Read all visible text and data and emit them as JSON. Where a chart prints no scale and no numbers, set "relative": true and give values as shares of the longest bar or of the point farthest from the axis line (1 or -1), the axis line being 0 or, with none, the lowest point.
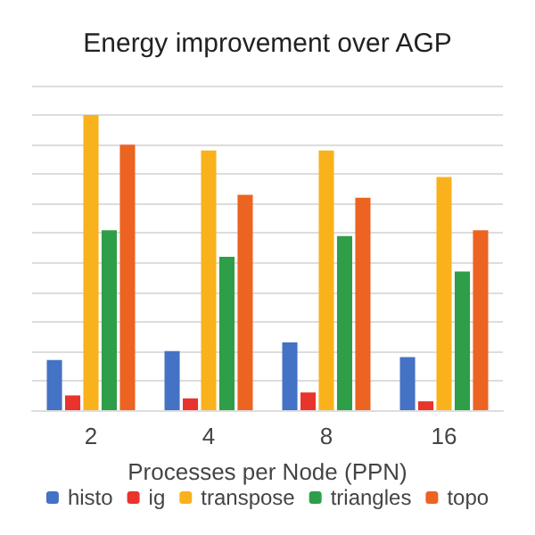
{
  "chart_data": {
    "type": "bar",
    "title": "Energy improvement over AGP",
    "xlabel": "Processes per Node (PPN)",
    "categories": [
      "2",
      "4",
      "8",
      "16"
    ],
    "relative": true,
    "grid": "y",
    "legend": "bottom",
    "series": [
      {
        "name": "histo",
        "color": "#4472c4",
        "values": [
          0.17,
          0.2,
          0.23,
          0.18
        ]
      },
      {
        "name": "ig",
        "color": "#e8342c",
        "values": [
          0.05,
          0.04,
          0.06,
          0.03
        ]
      },
      {
        "name": "transpose",
        "color": "#f9b21c",
        "values": [
          1,
          0.88,
          0.88,
          0.79
        ]
      },
      {
        "name": "triangles",
        "color": "#2e9e48",
        "values": [
          0.61,
          0.52,
          0.59,
          0.47
        ]
      },
      {
        "name": "topo",
        "color": "#ec6322",
        "values": [
          0.9,
          0.73,
          0.72,
          0.61
        ]
      }
    ]
  }
}
